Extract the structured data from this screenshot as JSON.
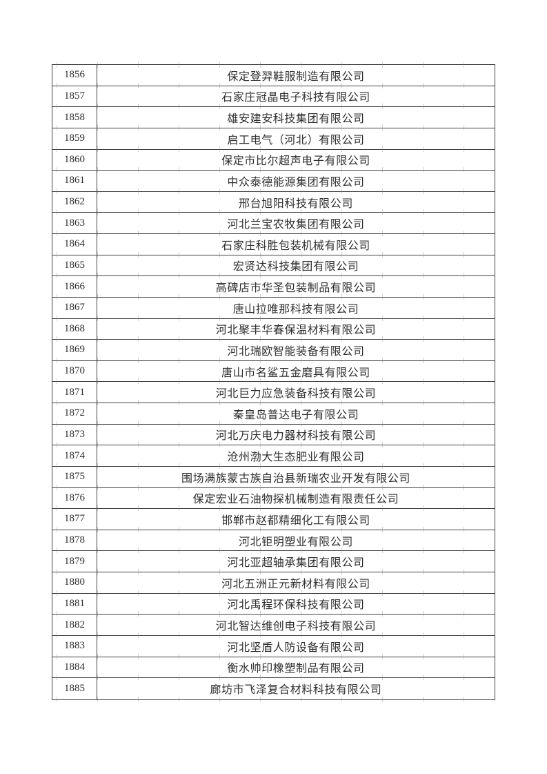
{
  "colors": {
    "page_background": "#ffffff",
    "table_border": "#3d3d3d",
    "text": "#2e2e2e",
    "faint_grid_tick": "#8c8c8c"
  },
  "table": {
    "rows": [
      {
        "no": "1856",
        "company": "保定登羿鞋服制造有限公司"
      },
      {
        "no": "1857",
        "company": "石家庄冠晶电子科技有限公司"
      },
      {
        "no": "1858",
        "company": "雄安建安科技集团有限公司"
      },
      {
        "no": "1859",
        "company": "启工电气（河北）有限公司"
      },
      {
        "no": "1860",
        "company": "保定市比尔超声电子有限公司"
      },
      {
        "no": "1861",
        "company": "中众泰德能源集团有限公司"
      },
      {
        "no": "1862",
        "company": "邢台旭阳科技有限公司"
      },
      {
        "no": "1863",
        "company": "河北兰宝农牧集团有限公司"
      },
      {
        "no": "1864",
        "company": "石家庄科胜包装机械有限公司"
      },
      {
        "no": "1865",
        "company": "宏贤达科技集团有限公司"
      },
      {
        "no": "1866",
        "company": "高碑店市华圣包装制品有限公司"
      },
      {
        "no": "1867",
        "company": "唐山拉唯那科技有限公司"
      },
      {
        "no": "1868",
        "company": "河北聚丰华春保温材料有限公司"
      },
      {
        "no": "1869",
        "company": "河北瑞欧智能装备有限公司"
      },
      {
        "no": "1870",
        "company": "唐山市名鲨五金磨具有限公司"
      },
      {
        "no": "1871",
        "company": "河北巨力应急装备科技有限公司"
      },
      {
        "no": "1872",
        "company": "秦皇岛普达电子有限公司"
      },
      {
        "no": "1873",
        "company": "河北万庆电力器材科技有限公司"
      },
      {
        "no": "1874",
        "company": "沧州渤大生态肥业有限公司"
      },
      {
        "no": "1875",
        "company": "围场满族蒙古族自治县新瑞农业开发有限公司"
      },
      {
        "no": "1876",
        "company": "保定宏业石油物探机械制造有限责任公司"
      },
      {
        "no": "1877",
        "company": "邯郸市赵都精细化工有限公司"
      },
      {
        "no": "1878",
        "company": "河北钜明塑业有限公司"
      },
      {
        "no": "1879",
        "company": "河北亚超轴承集团有限公司"
      },
      {
        "no": "1880",
        "company": "河北五洲正元新材料有限公司"
      },
      {
        "no": "1881",
        "company": "河北禹程环保科技有限公司"
      },
      {
        "no": "1882",
        "company": "河北智达维创电子科技有限公司"
      },
      {
        "no": "1883",
        "company": "河北坚盾人防设备有限公司"
      },
      {
        "no": "1884",
        "company": "衡水帅印橡塑制品有限公司"
      },
      {
        "no": "1885",
        "company": "廊坊市飞泽复合材料科技有限公司"
      }
    ]
  }
}
